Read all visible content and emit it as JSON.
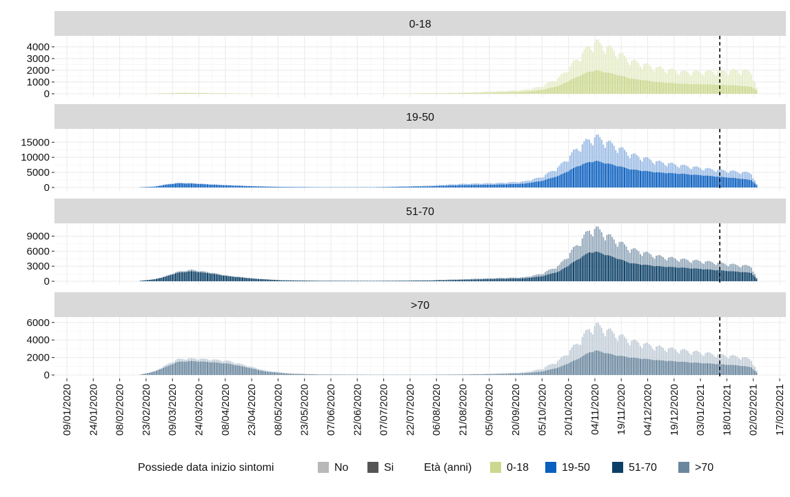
{
  "chart_data": {
    "type": "bar",
    "stacked": true,
    "facet_by": "Età (anni)",
    "date_range": [
      "2020-01-29",
      "2021-02-04"
    ],
    "reference_line_date": "2021-01-14",
    "x_ticks": [
      "09/01/2020",
      "24/01/2020",
      "08/02/2020",
      "23/02/2020",
      "09/03/2020",
      "24/03/2020",
      "08/04/2020",
      "23/04/2020",
      "08/05/2020",
      "23/05/2020",
      "07/06/2020",
      "22/06/2020",
      "07/07/2020",
      "22/07/2020",
      "06/08/2020",
      "21/08/2020",
      "05/09/2020",
      "20/09/2020",
      "05/10/2020",
      "20/10/2020",
      "04/11/2020",
      "19/11/2020",
      "04/12/2020",
      "19/12/2020",
      "03/01/2021",
      "18/01/2021",
      "02/02/2021",
      "17/02/2021"
    ],
    "grid": true,
    "legend": {
      "position": "bottom",
      "symptom_title": "Possiede data inizio sintomi",
      "symptom_items": [
        {
          "label": "No",
          "color": "#b8b8b8"
        },
        {
          "label": "Si",
          "color": "#555555"
        }
      ],
      "age_title": "Età (anni)",
      "age_items": [
        {
          "label": "0-18",
          "color": "#cbd88e"
        },
        {
          "label": "19-50",
          "color": "#0a5fbf"
        },
        {
          "label": "51-70",
          "color": "#0b3f66"
        },
        {
          "label": ">70",
          "color": "#6a879e"
        }
      ]
    },
    "panels": [
      {
        "name": "0-18",
        "color_si": "#cbd88e",
        "color_no": "#e6edc9",
        "ylim": [
          0,
          4700
        ],
        "y_ticks": [
          0,
          1000,
          2000,
          3000,
          4000
        ],
        "series": [
          {
            "name": "Si",
            "dates": [
              "2020-02-25",
              "2020-03-05",
              "2020-03-15",
              "2020-03-25",
              "2020-04-05",
              "2020-04-20",
              "2020-05-10",
              "2020-06-10",
              "2020-07-10",
              "2020-08-10",
              "2020-08-25",
              "2020-09-10",
              "2020-09-25",
              "2020-10-05",
              "2020-10-15",
              "2020-10-25",
              "2020-11-01",
              "2020-11-05",
              "2020-11-15",
              "2020-11-25",
              "2020-12-10",
              "2020-12-25",
              "2021-01-10",
              "2021-01-25",
              "2021-02-01",
              "2021-02-04"
            ],
            "values": [
              10,
              40,
              70,
              60,
              40,
              15,
              5,
              5,
              10,
              40,
              60,
              120,
              180,
              330,
              700,
              1450,
              1900,
              2000,
              1700,
              1300,
              1000,
              850,
              800,
              700,
              600,
              300
            ]
          },
          {
            "name": "No",
            "dates": [
              "2020-02-25",
              "2020-03-05",
              "2020-03-15",
              "2020-03-25",
              "2020-04-05",
              "2020-04-20",
              "2020-05-10",
              "2020-06-10",
              "2020-07-10",
              "2020-08-10",
              "2020-08-25",
              "2020-09-10",
              "2020-09-25",
              "2020-10-05",
              "2020-10-15",
              "2020-10-25",
              "2020-11-01",
              "2020-11-05",
              "2020-11-15",
              "2020-11-25",
              "2020-12-10",
              "2020-12-25",
              "2021-01-10",
              "2021-01-25",
              "2021-02-01",
              "2021-02-04"
            ],
            "values": [
              0,
              10,
              20,
              20,
              10,
              5,
              0,
              0,
              5,
              30,
              60,
              100,
              150,
              300,
              700,
              1500,
              2200,
              2400,
              2000,
              1500,
              1200,
              1000,
              1100,
              1300,
              1300,
              200
            ]
          }
        ]
      },
      {
        "name": "19-50",
        "color_si": "#0a5fbf",
        "color_no": "#9dbde6",
        "ylim": [
          0,
          18500
        ],
        "y_ticks": [
          0,
          5000,
          10000,
          15000
        ],
        "series": [
          {
            "name": "Si",
            "dates": [
              "2020-02-20",
              "2020-02-28",
              "2020-03-05",
              "2020-03-12",
              "2020-03-20",
              "2020-03-30",
              "2020-04-10",
              "2020-04-25",
              "2020-05-10",
              "2020-06-01",
              "2020-07-01",
              "2020-08-01",
              "2020-08-20",
              "2020-09-10",
              "2020-09-25",
              "2020-10-05",
              "2020-10-15",
              "2020-10-25",
              "2020-11-01",
              "2020-11-05",
              "2020-11-15",
              "2020-11-25",
              "2020-12-10",
              "2020-12-25",
              "2021-01-10",
              "2021-01-25",
              "2021-02-01",
              "2021-02-04"
            ],
            "values": [
              100,
              300,
              900,
              1400,
              1300,
              1000,
              700,
              400,
              200,
              100,
              100,
              400,
              800,
              1000,
              1300,
              2200,
              4000,
              7000,
              8500,
              8800,
              7500,
              6000,
              5000,
              4500,
              3800,
              3000,
              2500,
              800
            ]
          },
          {
            "name": "No",
            "dates": [
              "2020-02-20",
              "2020-02-28",
              "2020-03-05",
              "2020-03-12",
              "2020-03-20",
              "2020-03-30",
              "2020-04-10",
              "2020-04-25",
              "2020-05-10",
              "2020-06-01",
              "2020-07-01",
              "2020-08-01",
              "2020-08-20",
              "2020-09-10",
              "2020-09-25",
              "2020-10-05",
              "2020-10-15",
              "2020-10-25",
              "2020-11-01",
              "2020-11-05",
              "2020-11-15",
              "2020-11-25",
              "2020-12-10",
              "2020-12-25",
              "2021-01-10",
              "2021-01-25",
              "2021-02-01",
              "2021-02-04"
            ],
            "values": [
              0,
              0,
              100,
              200,
              200,
              100,
              100,
              50,
              0,
              0,
              0,
              200,
              400,
              500,
              700,
              1300,
              3000,
              6000,
              7500,
              8000,
              6500,
              5000,
              3500,
              2700,
              2200,
              2200,
              2300,
              300
            ]
          }
        ]
      },
      {
        "name": "51-70",
        "color_si": "#0b3f66",
        "color_no": "#93a8ba",
        "ylim": [
          0,
          11000
        ],
        "y_ticks": [
          0,
          3000,
          6000,
          9000
        ],
        "series": [
          {
            "name": "Si",
            "dates": [
              "2020-02-20",
              "2020-02-28",
              "2020-03-05",
              "2020-03-12",
              "2020-03-20",
              "2020-03-30",
              "2020-04-10",
              "2020-04-25",
              "2020-05-10",
              "2020-06-01",
              "2020-07-01",
              "2020-08-01",
              "2020-08-20",
              "2020-09-10",
              "2020-09-25",
              "2020-10-05",
              "2020-10-15",
              "2020-10-25",
              "2020-11-01",
              "2020-11-05",
              "2020-11-15",
              "2020-11-25",
              "2020-12-10",
              "2020-12-25",
              "2021-01-10",
              "2021-01-25",
              "2021-02-01",
              "2021-02-04"
            ],
            "values": [
              100,
              400,
              900,
              1700,
              2000,
              1600,
              1000,
              500,
              200,
              100,
              80,
              150,
              300,
              500,
              600,
              1000,
              2000,
              4300,
              5800,
              5900,
              4800,
              3600,
              3000,
              2700,
              2300,
              1900,
              1700,
              500
            ]
          },
          {
            "name": "No",
            "dates": [
              "2020-02-20",
              "2020-02-28",
              "2020-03-05",
              "2020-03-12",
              "2020-03-20",
              "2020-03-30",
              "2020-04-10",
              "2020-04-25",
              "2020-05-10",
              "2020-06-01",
              "2020-07-01",
              "2020-08-01",
              "2020-08-20",
              "2020-09-10",
              "2020-09-25",
              "2020-10-05",
              "2020-10-15",
              "2020-10-25",
              "2020-11-01",
              "2020-11-05",
              "2020-11-15",
              "2020-11-25",
              "2020-12-10",
              "2020-12-25",
              "2021-01-10",
              "2021-01-25",
              "2021-02-01",
              "2021-02-04"
            ],
            "values": [
              0,
              0,
              100,
              200,
              300,
              200,
              100,
              50,
              0,
              0,
              0,
              50,
              100,
              150,
              200,
              500,
              1200,
              3000,
              4400,
              4600,
              3600,
              2800,
              2000,
              1600,
              1500,
              1300,
              1300,
              200
            ]
          }
        ]
      },
      {
        "name": ">70",
        "color_si": "#6a879e",
        "color_no": "#c3ced8",
        "ylim": [
          0,
          6300
        ],
        "y_ticks": [
          0,
          2000,
          4000,
          6000
        ],
        "series": [
          {
            "name": "Si",
            "dates": [
              "2020-02-20",
              "2020-02-28",
              "2020-03-05",
              "2020-03-12",
              "2020-03-20",
              "2020-03-30",
              "2020-04-10",
              "2020-04-20",
              "2020-05-01",
              "2020-05-15",
              "2020-06-01",
              "2020-07-01",
              "2020-08-01",
              "2020-08-20",
              "2020-09-10",
              "2020-09-25",
              "2020-10-05",
              "2020-10-15",
              "2020-10-25",
              "2020-11-01",
              "2020-11-05",
              "2020-11-15",
              "2020-11-25",
              "2020-12-10",
              "2020-12-25",
              "2021-01-10",
              "2021-01-25",
              "2021-02-01",
              "2021-02-04"
            ],
            "values": [
              50,
              400,
              900,
              1500,
              1600,
              1500,
              1300,
              900,
              400,
              150,
              60,
              30,
              30,
              60,
              120,
              200,
              400,
              900,
              1800,
              2600,
              2800,
              2300,
              2000,
              1700,
              1500,
              1300,
              1100,
              900,
              300
            ]
          },
          {
            "name": "No",
            "dates": [
              "2020-02-20",
              "2020-02-28",
              "2020-03-05",
              "2020-03-12",
              "2020-03-20",
              "2020-03-30",
              "2020-04-10",
              "2020-04-20",
              "2020-05-01",
              "2020-05-15",
              "2020-06-01",
              "2020-07-01",
              "2020-08-01",
              "2020-08-20",
              "2020-09-10",
              "2020-09-25",
              "2020-10-05",
              "2020-10-15",
              "2020-10-25",
              "2020-11-01",
              "2020-11-05",
              "2020-11-15",
              "2020-11-25",
              "2020-12-10",
              "2020-12-25",
              "2021-01-10",
              "2021-01-25",
              "2021-02-01",
              "2021-02-04"
            ],
            "values": [
              0,
              50,
              200,
              300,
              300,
              300,
              300,
              200,
              100,
              30,
              10,
              5,
              5,
              20,
              50,
              100,
              300,
              800,
              1800,
              2700,
              2900,
              2500,
              1900,
              1500,
              1300,
              1100,
              1000,
              900,
              200
            ]
          }
        ]
      }
    ]
  }
}
